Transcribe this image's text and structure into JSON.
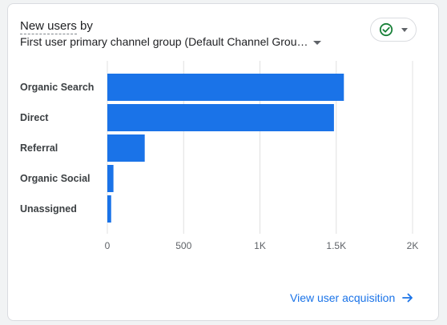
{
  "card": {
    "title_prefix": "New users",
    "title_suffix": " by",
    "dimension_label": "First user primary channel group (Default Channel Grou…"
  },
  "status": {
    "icon": "check-circle-icon",
    "color": "#188038"
  },
  "link": {
    "label": "View user acquisition",
    "icon": "arrow-right-icon"
  },
  "colors": {
    "bar": "#1a73e8",
    "link": "#1a73e8",
    "grid": "#e0e0e0"
  },
  "chart_data": {
    "type": "bar",
    "orientation": "horizontal",
    "categories": [
      "Organic Search",
      "Direct",
      "Referral",
      "Organic Social",
      "Unassigned"
    ],
    "values": [
      1550,
      1485,
      245,
      40,
      25
    ],
    "xlim": [
      0,
      2000
    ],
    "xticks": [
      0,
      500,
      1000,
      1500,
      2000
    ],
    "xtick_labels": [
      "0",
      "500",
      "1K",
      "1.5K",
      "2K"
    ],
    "grid": true
  }
}
